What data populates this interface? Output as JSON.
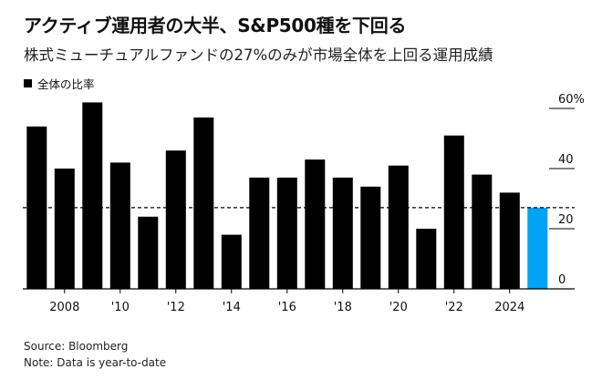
{
  "header": {
    "title": "アクティブ運用者の大半、S&P500種を下回る",
    "subtitle": "株式ミューチュアルファンドの27%のみが市場全体を上回る運用成績"
  },
  "legend": {
    "label": "全体の比率"
  },
  "footer": {
    "source": "Source: Bloomberg",
    "note": "Note: Data is year-to-date"
  },
  "colors": {
    "bar": "#000000",
    "highlight": "#00a3f5",
    "reference": "#000000"
  },
  "chart_data": {
    "type": "bar",
    "title": "アクティブ運用者の大半、S&P500種を下回る",
    "subtitle": "株式ミューチュアルファンドの27%のみが市場全体を上回る運用成績",
    "series": [
      {
        "name": "全体の比率",
        "categories": [
          "2007",
          "2008",
          "2009",
          "2010",
          "2011",
          "2012",
          "2013",
          "2014",
          "2015",
          "2016",
          "2017",
          "2018",
          "2019",
          "2020",
          "2021",
          "2022",
          "2023",
          "2024",
          "2025"
        ],
        "values": [
          54,
          40,
          62,
          42,
          24,
          46,
          57,
          18,
          37,
          37,
          43,
          37,
          34,
          41,
          20,
          51,
          38,
          32,
          27
        ]
      }
    ],
    "highlight_index": 18,
    "reference_line": 27,
    "x_tick_labels": [
      {
        "index": 1,
        "label": "2008"
      },
      {
        "index": 3,
        "label": "'10"
      },
      {
        "index": 5,
        "label": "'12"
      },
      {
        "index": 7,
        "label": "'14"
      },
      {
        "index": 9,
        "label": "'16"
      },
      {
        "index": 11,
        "label": "'18"
      },
      {
        "index": 13,
        "label": "'20"
      },
      {
        "index": 15,
        "label": "'22"
      },
      {
        "index": 17,
        "label": "2024"
      }
    ],
    "y_ticks": [
      {
        "value": 0,
        "label": "0"
      },
      {
        "value": 20,
        "label": "20"
      },
      {
        "value": 40,
        "label": "40"
      },
      {
        "value": 60,
        "label": "60%"
      }
    ],
    "ylim": [
      0,
      65
    ],
    "xlabel": "",
    "ylabel": ""
  }
}
